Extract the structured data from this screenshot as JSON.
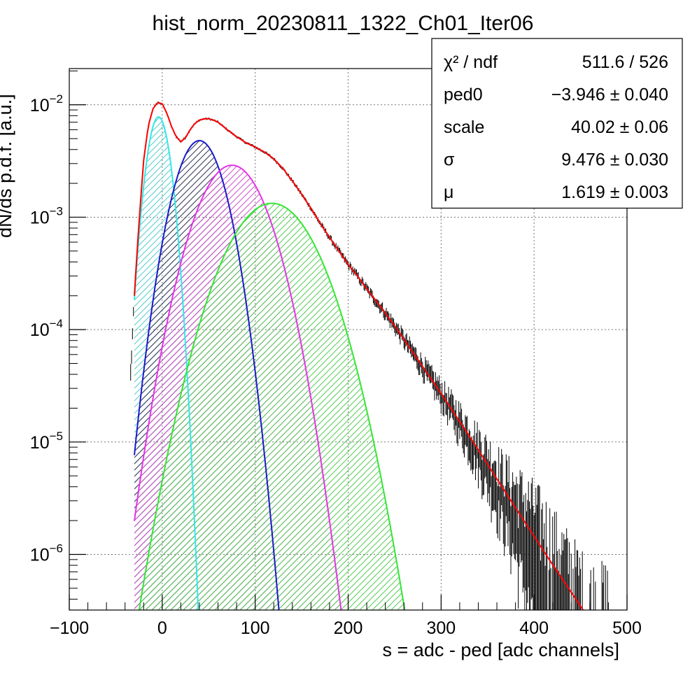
{
  "chart_data": {
    "type": "line",
    "title": "hist_norm_20230811_1322_Ch01_Iter06",
    "xlabel": "s = adc - ped [adc channels]",
    "ylabel": "dN/ds p.d.f. [a.u.]",
    "xlim": [
      -100,
      500
    ],
    "ylim": [
      3.2e-07,
      0.021
    ],
    "yscale": "log",
    "grid": true,
    "x_ticks": [
      {
        "value": -100,
        "label": "−100"
      },
      {
        "value": 0,
        "label": "0"
      },
      {
        "value": 100,
        "label": "100"
      },
      {
        "value": 200,
        "label": "200"
      },
      {
        "value": 300,
        "label": "300"
      },
      {
        "value": 400,
        "label": "400"
      },
      {
        "value": 500,
        "label": "500"
      }
    ],
    "y_ticks": [
      {
        "value": 0.01,
        "base": "10",
        "exp": "−2"
      },
      {
        "value": 0.001,
        "base": "10",
        "exp": "−3"
      },
      {
        "value": 0.0001,
        "base": "10",
        "exp": "−4"
      },
      {
        "value": 1e-05,
        "base": "10",
        "exp": "−5"
      },
      {
        "value": 1e-06,
        "base": "10",
        "exp": "−6"
      }
    ],
    "stats_box": {
      "position": "top-right",
      "rows": [
        {
          "label": "χ² / ndf",
          "value": "511.6 / 526"
        },
        {
          "label": "ped0",
          "value": "−3.946 ± 0.040"
        },
        {
          "label": "scale",
          "value": "40.02 ± 0.06"
        },
        {
          "label": "σ",
          "value": "9.476 ± 0.030"
        },
        {
          "label": "μ",
          "value": "1.619 ± 0.003"
        }
      ]
    },
    "fit_parameters": {
      "ped0": -3.946,
      "scale": 40.02,
      "sigma": 9.476,
      "mu": 1.619
    },
    "x_range_shown": [
      -30,
      480
    ],
    "components": [
      {
        "color": "#33e6e6",
        "hatch": "#55cccc",
        "peak_x": -4.0,
        "peak_y": 0.0078,
        "sigma": 9.5
      },
      {
        "color": "#1a1acc",
        "hatch": "#333355",
        "peak_x": 40.0,
        "peak_y": 0.0048,
        "sigma": 19.5
      },
      {
        "color": "#e633e6",
        "hatch": "#cc55cc",
        "peak_x": 75.0,
        "peak_y": 0.0029,
        "sigma": 27.5
      },
      {
        "color": "#33e633",
        "hatch": "#55cc55",
        "peak_x": 118.0,
        "peak_y": 0.00133,
        "sigma": 35.0
      }
    ],
    "total_fit": {
      "color": "#ff0000",
      "points": [
        [
          -30,
          0.0002
        ],
        [
          -25,
          0.0009
        ],
        [
          -20,
          0.0032
        ],
        [
          -15,
          0.0065
        ],
        [
          -10,
          0.0092
        ],
        [
          -5,
          0.0105
        ],
        [
          0,
          0.0102
        ],
        [
          5,
          0.0084
        ],
        [
          10,
          0.0064
        ],
        [
          15,
          0.0052
        ],
        [
          20,
          0.0047
        ],
        [
          25,
          0.0051
        ],
        [
          30,
          0.006
        ],
        [
          35,
          0.0068
        ],
        [
          40,
          0.0073
        ],
        [
          45,
          0.0075
        ],
        [
          50,
          0.0075
        ],
        [
          55,
          0.0073
        ],
        [
          60,
          0.007
        ],
        [
          70,
          0.006
        ],
        [
          80,
          0.0052
        ],
        [
          90,
          0.0046
        ],
        [
          100,
          0.0042
        ],
        [
          110,
          0.0038
        ],
        [
          120,
          0.0033
        ],
        [
          130,
          0.0027
        ],
        [
          140,
          0.0021
        ],
        [
          150,
          0.0016
        ],
        [
          160,
          0.0012
        ],
        [
          170,
          0.00088
        ],
        [
          180,
          0.00066
        ],
        [
          190,
          0.0005
        ],
        [
          200,
          0.00038
        ],
        [
          210,
          0.0003
        ],
        [
          220,
          0.00023
        ],
        [
          230,
          0.00018
        ],
        [
          240,
          0.00014
        ],
        [
          250,
          0.000108
        ],
        [
          260,
          8.2e-05
        ],
        [
          270,
          6.2e-05
        ],
        [
          280,
          4.7e-05
        ],
        [
          300,
          2.7e-05
        ],
        [
          320,
          1.52e-05
        ],
        [
          340,
          8.5e-06
        ],
        [
          360,
          4.7e-06
        ],
        [
          380,
          2.6e-06
        ],
        [
          400,
          1.45e-06
        ],
        [
          420,
          8.1e-07
        ],
        [
          440,
          4.6e-07
        ],
        [
          460,
          2.6e-07
        ]
      ]
    },
    "data_series": {
      "name": "",
      "color": "#000000",
      "x_step": 1
    }
  }
}
